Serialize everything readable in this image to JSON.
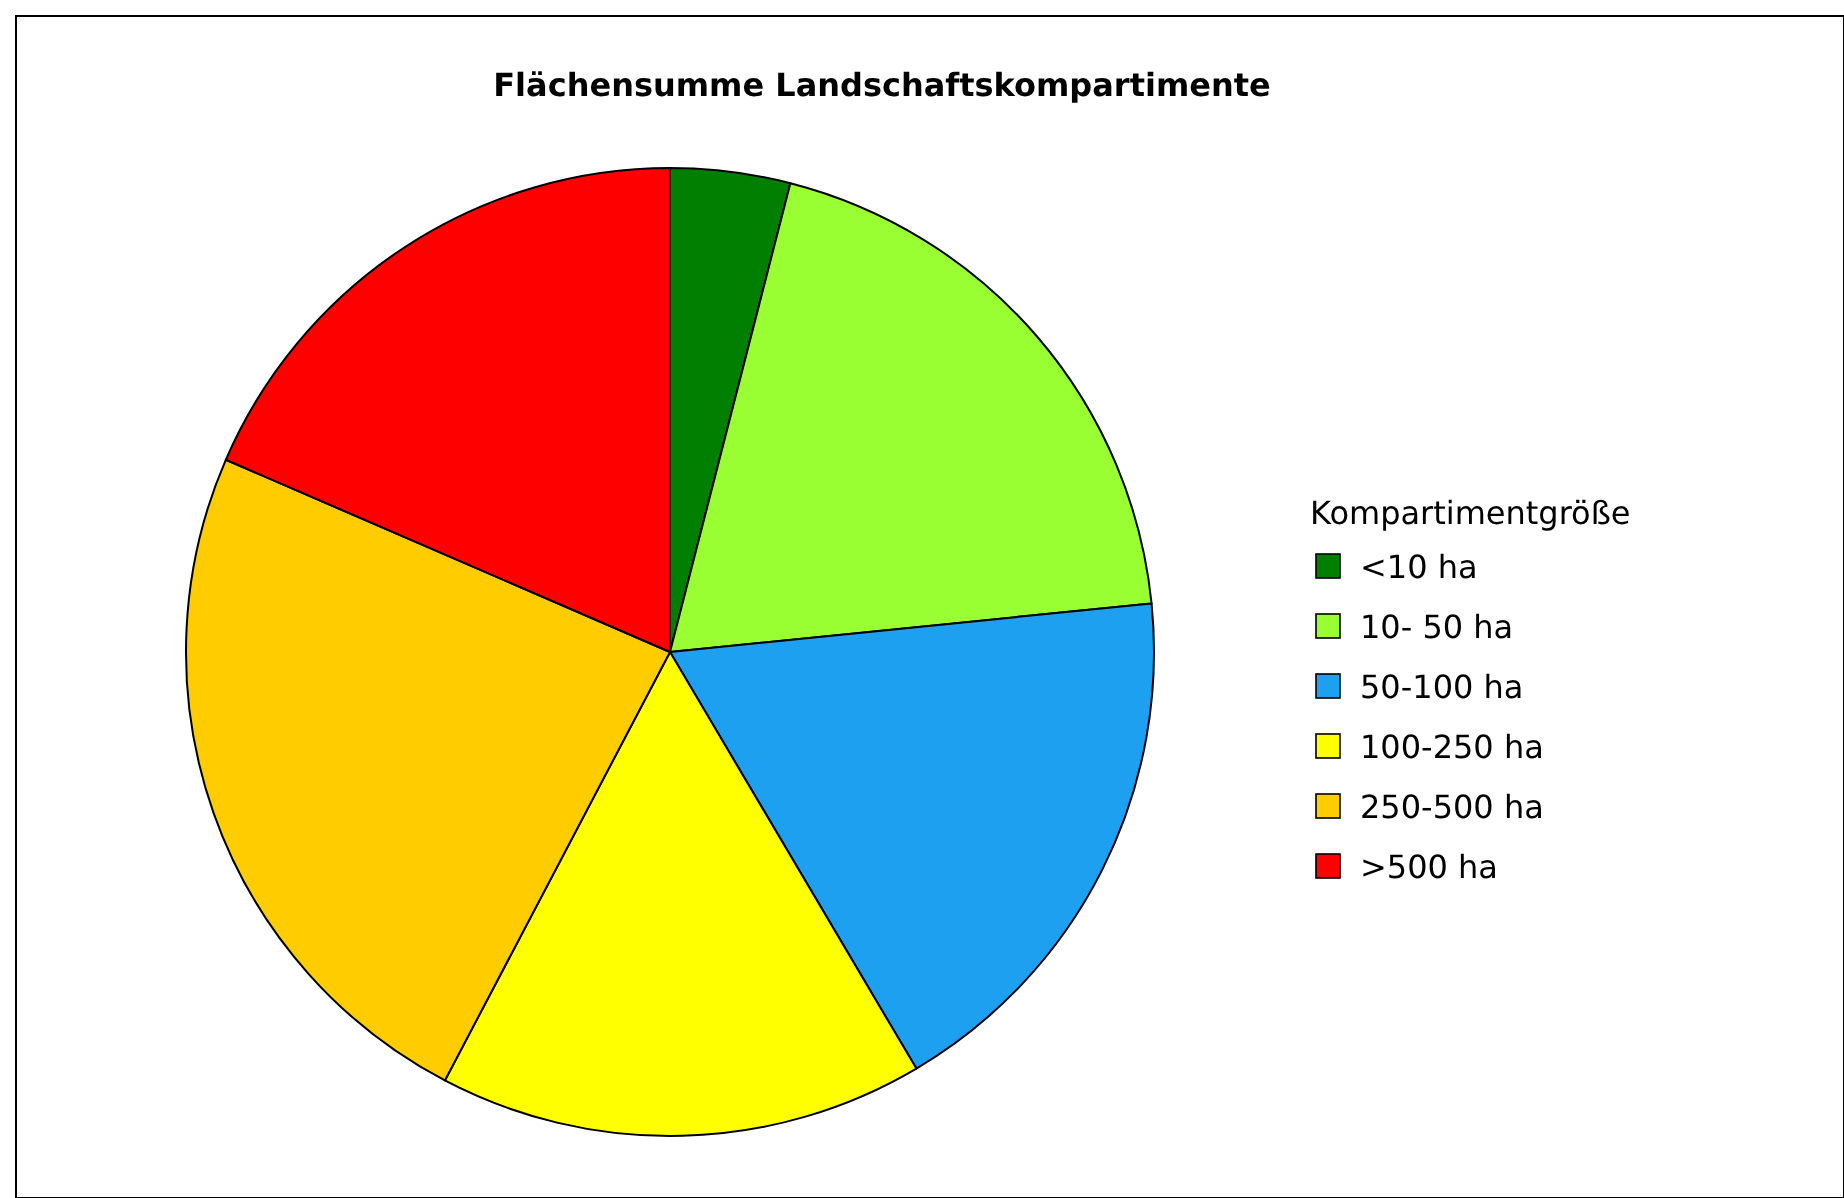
{
  "chart_data": {
    "type": "pie",
    "title": "Flächensumme Landschaftskompartimente",
    "legend_title": "Kompartimentgröße",
    "legend": "right",
    "categories": [
      "<10 ha",
      "10- 50 ha",
      "50-100 ha",
      "100-250 ha",
      "250-500 ha",
      ">500 ha"
    ],
    "values": [
      4,
      19.4,
      18.1,
      16.2,
      23.8,
      18.5
    ],
    "colors": [
      "#007f00",
      "#99ff33",
      "#1ea0f0",
      "#ffff00",
      "#ffcc00",
      "#ff0000"
    ]
  }
}
